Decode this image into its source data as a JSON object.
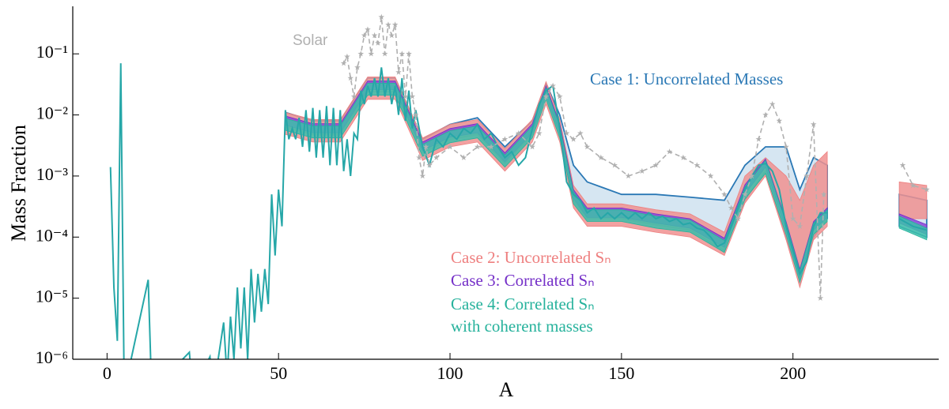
{
  "chart_data": {
    "type": "band-line",
    "x_label": "A",
    "y_label": "Mass Fraction",
    "xlim": [
      -10,
      242.5
    ],
    "xticks": [
      0,
      50,
      100,
      150,
      200
    ],
    "ylim": [
      1e-06,
      0.6
    ],
    "log_y": true,
    "yticks": [
      {
        "value": 1e-06,
        "label": "10⁻⁶"
      },
      {
        "value": 1e-05,
        "label": "10⁻⁵"
      },
      {
        "value": 0.0001,
        "label": "10⁻⁴"
      },
      {
        "value": 0.001,
        "label": "10⁻³"
      },
      {
        "value": 0.01,
        "label": "10⁻²"
      },
      {
        "value": 0.1,
        "label": "10⁻¹"
      }
    ],
    "band_x": [
      52,
      60,
      68,
      76,
      84,
      92,
      100,
      108,
      116,
      124,
      128,
      132,
      136,
      140,
      150,
      160,
      170,
      180,
      186,
      192,
      198,
      202,
      206,
      210,
      null,
      231,
      239
    ],
    "series": [
      {
        "name": "Case 1: Uncorrelated Masses",
        "color": "#2a78b5",
        "fill": "#d6e6f2",
        "lower": [
          0.0064,
          0.0048,
          0.0048,
          0.024,
          0.024,
          0.0024,
          0.004,
          0.0048,
          0.0016,
          0.0048,
          0.02,
          0.0048,
          0.0004,
          0.0002,
          0.0002,
          0.00016,
          0.00013,
          6e-05,
          0.0004,
          0.0012,
          0.0001,
          2e-05,
          0.0001,
          0.0002,
          null,
          0.00015,
          0.0001
        ],
        "upper": [
          0.011,
          0.008,
          0.008,
          0.04,
          0.04,
          0.004,
          0.007,
          0.009,
          0.003,
          0.008,
          0.033,
          0.01,
          0.0015,
          0.0008,
          0.0005,
          0.0005,
          0.00045,
          0.0004,
          0.0015,
          0.003,
          0.003,
          0.0006,
          0.002,
          0.0015,
          null,
          0.0005,
          0.0004
        ]
      },
      {
        "name": "Case 2: Uncorrelated Sₙ",
        "color": "#ee7f7f",
        "fill": "#f09090",
        "lower": [
          0.0048,
          0.0036,
          0.0036,
          0.018,
          0.018,
          0.0018,
          0.003,
          0.0036,
          0.0012,
          0.0036,
          0.015,
          0.0036,
          0.0003,
          0.00015,
          0.00015,
          0.00012,
          0.0001,
          5e-05,
          0.00036,
          0.001,
          9e-05,
          1.5e-05,
          9e-05,
          0.00015,
          null,
          0.0002,
          0.0002
        ],
        "upper": [
          0.011,
          0.0084,
          0.0084,
          0.042,
          0.042,
          0.0042,
          0.007,
          0.0084,
          0.0028,
          0.0084,
          0.035,
          0.0084,
          0.0007,
          0.00035,
          0.00035,
          0.00028,
          0.00024,
          0.00012,
          0.001,
          0.002,
          0.001,
          0.0004,
          0.0015,
          0.0025,
          null,
          0.0008,
          0.0007
        ]
      },
      {
        "name": "Case 3: Correlated Sₙ",
        "color": "#7530c8",
        "fill": "#8a44d8",
        "lower": [
          0.0068,
          0.0051,
          0.0051,
          0.026,
          0.026,
          0.0026,
          0.0043,
          0.0051,
          0.0017,
          0.0051,
          0.021,
          0.0051,
          0.00043,
          0.00021,
          0.00021,
          0.00017,
          0.00014,
          6.8e-05,
          0.00051,
          0.0014,
          0.00013,
          2.1e-05,
          0.00013,
          0.00021,
          null,
          0.00017,
          0.00011
        ],
        "upper": [
          0.0096,
          0.0072,
          0.0072,
          0.036,
          0.036,
          0.0036,
          0.006,
          0.0072,
          0.0024,
          0.0072,
          0.03,
          0.0072,
          0.0006,
          0.0003,
          0.0003,
          0.00024,
          0.0002,
          9.6e-05,
          0.00072,
          0.0019,
          0.00018,
          3e-05,
          0.00018,
          0.0003,
          null,
          0.00024,
          0.00016
        ]
      },
      {
        "name": "Case 4: Correlated Sₙ\nwith coherent masses",
        "color": "#26b29c",
        "fill": "#3cc0aa",
        "lower": [
          0.0056,
          0.0042,
          0.0042,
          0.021,
          0.021,
          0.0021,
          0.0035,
          0.0042,
          0.0014,
          0.0042,
          0.018,
          0.0042,
          0.00035,
          0.00018,
          0.00018,
          0.00014,
          0.00012,
          5.6e-05,
          0.00042,
          0.0011,
          0.00011,
          1.8e-05,
          0.00011,
          0.00018,
          null,
          0.00014,
          9e-05
        ],
        "upper": [
          0.0088,
          0.0066,
          0.0066,
          0.033,
          0.033,
          0.0033,
          0.0055,
          0.0066,
          0.0022,
          0.0066,
          0.028,
          0.0066,
          0.00055,
          0.00028,
          0.00028,
          0.00022,
          0.00019,
          8.8e-05,
          0.00066,
          0.0018,
          0.00017,
          2.8e-05,
          0.00017,
          0.00028,
          null,
          0.00022,
          0.00014
        ]
      }
    ],
    "line": {
      "color": "#26a7a8",
      "x": [
        1,
        2,
        3,
        4,
        5,
        12,
        13,
        24,
        25,
        30,
        31,
        34,
        35,
        36,
        37,
        38,
        39,
        40,
        41,
        42,
        43,
        44,
        45,
        46,
        47,
        48,
        49,
        50,
        51,
        52,
        53,
        54,
        55,
        56,
        57,
        58,
        59,
        60,
        61,
        62,
        63,
        64,
        65,
        66,
        67,
        68,
        69,
        70,
        71,
        72,
        73,
        74,
        75,
        76,
        77,
        78,
        79,
        80,
        81,
        82,
        83,
        84,
        85,
        86,
        87,
        88,
        89,
        90,
        92,
        94,
        96,
        98,
        100,
        102,
        104,
        106,
        108,
        110,
        112,
        114,
        116,
        118,
        120,
        122,
        124,
        126,
        128,
        130,
        132,
        134,
        136,
        138,
        140,
        142,
        144,
        146,
        148,
        150,
        152,
        154,
        156,
        158,
        160,
        162,
        164,
        166,
        168,
        170,
        172,
        174,
        176,
        178,
        180,
        182,
        184,
        186,
        188,
        190,
        192,
        194,
        196,
        198,
        200,
        202,
        204,
        206,
        208,
        210,
        220,
        231,
        235,
        239
      ],
      "values": [
        0.0014,
        1.5e-05,
        2e-06,
        0.07,
        3e-07,
        2e-05,
        3e-07,
        1.3e-06,
        3e-07,
        1.1e-06,
        3e-07,
        4e-06,
        5e-07,
        5e-06,
        1e-06,
        1.5e-05,
        1.5e-06,
        1.5e-05,
        1e-06,
        3e-05,
        4e-06,
        2.5e-05,
        6e-06,
        3e-05,
        8e-06,
        0.0005,
        5e-05,
        0.0006,
        0.00015,
        0.012,
        0.004,
        0.006,
        0.004,
        0.009,
        0.003,
        0.012,
        0.0025,
        0.013,
        0.002,
        0.012,
        0.002,
        0.014,
        0.0015,
        0.013,
        0.0015,
        0.012,
        0.0012,
        0.004,
        0.001,
        0.005,
        0.004,
        0.025,
        0.015,
        0.03,
        0.02,
        0.04,
        0.02,
        0.06,
        0.02,
        0.04,
        0.015,
        0.03,
        0.01,
        0.04,
        0.008,
        0.025,
        0.006,
        0.012,
        0.003,
        0.0015,
        0.004,
        0.003,
        0.005,
        0.004,
        0.006,
        0.005,
        0.007,
        0.004,
        0.005,
        0.003,
        0.002,
        0.0025,
        0.0015,
        0.002,
        0.006,
        0.015,
        0.025,
        0.03,
        0.006,
        0.0008,
        0.0005,
        0.0004,
        0.00025,
        0.0003,
        0.0002,
        0.00025,
        0.0002,
        0.00025,
        0.0002,
        0.00025,
        0.0002,
        0.00025,
        0.0002,
        0.00022,
        0.00018,
        0.0002,
        0.00016,
        0.00017,
        0.00014,
        0.00013,
        0.0001,
        7e-05,
        8e-05,
        0.00015,
        0.0003,
        0.0006,
        0.001,
        0.0015,
        0.0016,
        0.0012,
        0.0006,
        0.00015,
        6e-05,
        2.5e-05,
        4e-05,
        0.00015,
        0.00025,
        0.00025,
        null,
        0.0002,
        0.00015,
        0.00013
      ]
    },
    "solar": {
      "name": "Solar",
      "color": "#b0b0b0",
      "x": [
        69,
        70,
        71,
        72,
        73,
        74,
        75,
        76,
        77,
        78,
        79,
        80,
        81,
        82,
        83,
        84,
        85,
        86,
        87,
        88,
        89,
        90,
        91,
        92,
        93,
        94,
        96,
        100,
        104,
        108,
        112,
        116,
        120,
        124,
        126,
        128,
        130,
        132,
        134,
        136,
        138,
        140,
        144,
        148,
        152,
        156,
        160,
        164,
        168,
        172,
        176,
        180,
        182,
        184,
        186,
        188,
        190,
        192,
        194,
        196,
        198,
        200,
        202,
        204,
        206,
        208,
        209,
        220,
        232,
        235,
        239
      ],
      "values": [
        0.07,
        0.09,
        0.04,
        0.02,
        0.06,
        0.1,
        0.2,
        0.25,
        0.1,
        0.2,
        0.15,
        0.4,
        0.1,
        0.3,
        0.2,
        0.3,
        0.05,
        0.1,
        0.02,
        0.1,
        0.02,
        0.01,
        0.002,
        0.001,
        0.003,
        0.0015,
        0.002,
        0.003,
        0.002,
        0.003,
        0.003,
        0.004,
        0.005,
        0.003,
        0.005,
        0.02,
        0.03,
        0.02,
        0.005,
        0.004,
        0.005,
        0.003,
        0.002,
        0.0015,
        0.001,
        0.0012,
        0.0015,
        0.0025,
        0.002,
        0.0015,
        0.001,
        0.0005,
        0.0003,
        0.0002,
        0.0005,
        0.001,
        0.004,
        0.01,
        0.015,
        0.008,
        0.003,
        0.0002,
        0.00015,
        0.001,
        0.007,
        1e-05,
        0.0005,
        null,
        0.0015,
        0.0007,
        0.0006
      ]
    }
  }
}
